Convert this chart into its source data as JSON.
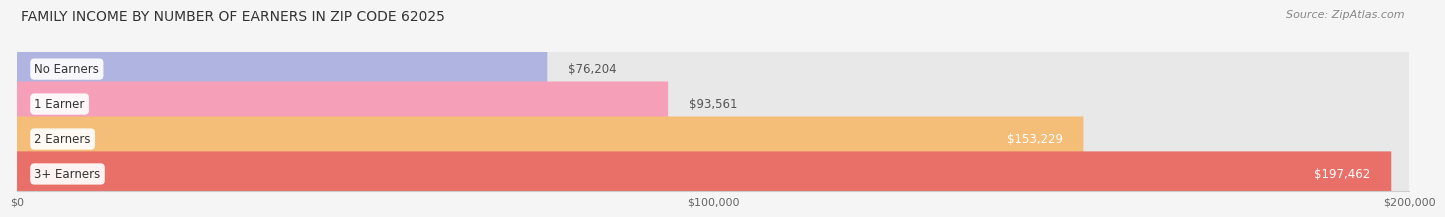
{
  "title": "FAMILY INCOME BY NUMBER OF EARNERS IN ZIP CODE 62025",
  "source": "Source: ZipAtlas.com",
  "categories": [
    "No Earners",
    "1 Earner",
    "2 Earners",
    "3+ Earners"
  ],
  "values": [
    76204,
    93561,
    153229,
    197462
  ],
  "bar_colors": [
    "#b0b4e0",
    "#f5a0b8",
    "#f5be78",
    "#e87068"
  ],
  "value_labels": [
    "$76,204",
    "$93,561",
    "$153,229",
    "$197,462"
  ],
  "value_inside": [
    false,
    false,
    true,
    true
  ],
  "xlim": [
    0,
    200000
  ],
  "xtick_values": [
    0,
    100000,
    200000
  ],
  "xtick_labels": [
    "$0",
    "$100,000",
    "$200,000"
  ],
  "background_color": "#f5f5f5",
  "bar_bg_color": "#e8e8e8",
  "title_fontsize": 10,
  "source_fontsize": 8,
  "label_fontsize": 8.5,
  "value_fontsize": 8.5
}
